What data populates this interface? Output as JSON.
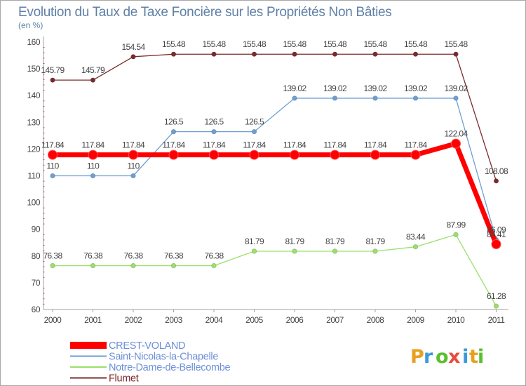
{
  "chart_data": {
    "type": "line",
    "title": "Evolution du Taux de Taxe Foncière sur les Propriétés Non Bâties",
    "subtitle": "(en %)",
    "x": [
      "2000",
      "2001",
      "2002",
      "2003",
      "2004",
      "2005",
      "2006",
      "2007",
      "2008",
      "2009",
      "2010",
      "2011"
    ],
    "ylim": [
      60,
      160
    ],
    "yticks": [
      60,
      70,
      80,
      90,
      100,
      110,
      120,
      130,
      140,
      150,
      160
    ],
    "ytick_labels": [
      "60",
      "70",
      "80",
      "90",
      "100",
      "110",
      "120",
      "130",
      "140",
      "150",
      "160"
    ],
    "grid": false,
    "legend_position": "bottom-left",
    "series": [
      {
        "name": "Flumet",
        "color": "#7b2b2b",
        "legend_color": "#7b2b2b",
        "weight": "thin",
        "values": [
          145.79,
          145.79,
          154.54,
          155.48,
          155.48,
          155.48,
          155.48,
          155.48,
          155.48,
          155.48,
          155.48,
          108.08
        ],
        "labels": [
          "145.79",
          "145.79",
          "154.54",
          "155.48",
          "155.48",
          "155.48",
          "155.48",
          "155.48",
          "155.48",
          "155.48",
          "155.48",
          "108.08"
        ]
      },
      {
        "name": "Saint-Nicolas-la-Chapelle",
        "color": "#6e9fd2",
        "legend_color": "#6b8fd8",
        "weight": "thin",
        "values": [
          110,
          110,
          110,
          126.5,
          126.5,
          126.5,
          139.02,
          139.02,
          139.02,
          139.02,
          139.02,
          86.09
        ],
        "labels": [
          "110",
          "110",
          "110",
          "126.5",
          "126.5",
          "126.5",
          "139.02",
          "139.02",
          "139.02",
          "139.02",
          "139.02",
          "86.09"
        ]
      },
      {
        "name": "Notre-Dame-de-Bellecombe",
        "color": "#9be06a",
        "legend_color": "#6b8fd8",
        "weight": "thin",
        "values": [
          76.38,
          76.38,
          76.38,
          76.38,
          76.38,
          81.79,
          81.79,
          81.79,
          81.79,
          83.44,
          87.99,
          61.28
        ],
        "labels": [
          "76.38",
          "76.38",
          "76.38",
          "76.38",
          "76.38",
          "81.79",
          "81.79",
          "81.79",
          "81.79",
          "83.44",
          "87.99",
          "61.28"
        ]
      },
      {
        "name": "CREST-VOLAND",
        "color": "#ff0000",
        "legend_color": "#6b8fd8",
        "weight": "thick",
        "values": [
          117.84,
          117.84,
          117.84,
          117.84,
          117.84,
          117.84,
          117.84,
          117.84,
          117.84,
          117.84,
          122.04,
          84.41
        ],
        "labels": [
          "117.84",
          "117.84",
          "117.84",
          "117.84",
          "117.84",
          "117.84",
          "117.84",
          "117.84",
          "117.84",
          "117.84",
          "122.04",
          "84.41"
        ]
      }
    ],
    "legend_order": [
      "CREST-VOLAND",
      "Saint-Nicolas-la-Chapelle",
      "Notre-Dame-de-Bellecombe",
      "Flumet"
    ]
  },
  "logo": {
    "letters": [
      "P",
      "r",
      "o",
      "x",
      "i",
      "t",
      "i"
    ],
    "colors": [
      "#e8a020",
      "#3a9ad9",
      "#5bbf2e",
      "#e84c3d",
      "#3a9ad9",
      "#e8a020",
      "#5bbf2e"
    ]
  }
}
